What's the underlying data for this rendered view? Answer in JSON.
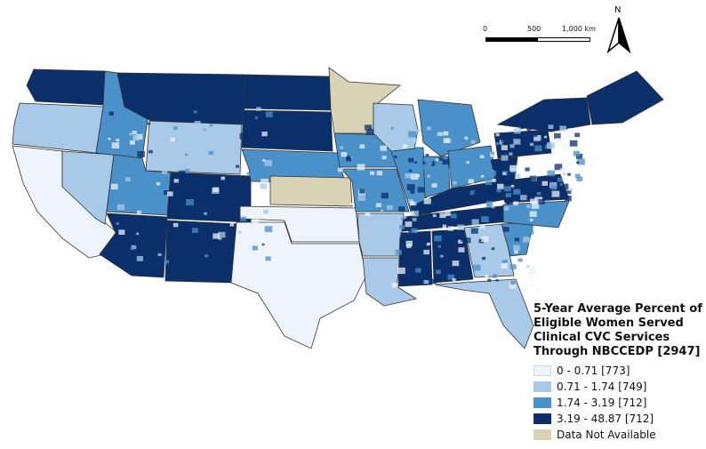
{
  "map": {
    "title": "5-Year Average Percent of Eligible Women Served Clinical CVC Services Through NBCCEDP [2947]",
    "scale_bar": {
      "labels": [
        "0",
        "500",
        "1,000 km"
      ]
    },
    "north_arrow_label": "N",
    "colors": {
      "class_1": "#eef4fb",
      "class_2": "#a9c9e8",
      "class_3": "#4a90c9",
      "class_4": "#0a2f6b",
      "no_data": "#d8d3b4",
      "boundary": "#333333"
    },
    "legend": {
      "title_lines": [
        "5-Year Average Percent of",
        "Eligible Women Served",
        "Clinical CVC Services",
        "Through NBCCEDP [2947]"
      ],
      "items": [
        {
          "label": "0 - 0.71 [773]",
          "color_key": "class_1"
        },
        {
          "label": "0.71 - 1.74 [749]",
          "color_key": "class_2"
        },
        {
          "label": "1.74 - 3.19 [712]",
          "color_key": "class_3"
        },
        {
          "label": "3.19 - 48.87 [712]",
          "color_key": "class_4"
        },
        {
          "label": "Data Not Available",
          "color_key": "no_data"
        }
      ]
    },
    "regions": [
      {
        "name": "Washington",
        "class": 4
      },
      {
        "name": "Oregon",
        "class": 2
      },
      {
        "name": "California",
        "class": 1
      },
      {
        "name": "Nevada",
        "class": 2
      },
      {
        "name": "Idaho",
        "class": 3
      },
      {
        "name": "Montana",
        "class": 4
      },
      {
        "name": "Wyoming",
        "class": 2
      },
      {
        "name": "Utah",
        "class": 3
      },
      {
        "name": "Arizona",
        "class": 4
      },
      {
        "name": "Colorado",
        "class": 4
      },
      {
        "name": "New Mexico",
        "class": 4
      },
      {
        "name": "North Dakota",
        "class": 4
      },
      {
        "name": "South Dakota",
        "class": 4
      },
      {
        "name": "Nebraska",
        "class": 3
      },
      {
        "name": "Kansas",
        "class": 0
      },
      {
        "name": "Oklahoma",
        "class": 1
      },
      {
        "name": "Texas",
        "class": 1
      },
      {
        "name": "Minnesota",
        "class": 0
      },
      {
        "name": "Iowa",
        "class": 3
      },
      {
        "name": "Missouri",
        "class": 3
      },
      {
        "name": "Arkansas",
        "class": 2
      },
      {
        "name": "Louisiana",
        "class": 2
      },
      {
        "name": "Wisconsin",
        "class": 2
      },
      {
        "name": "Illinois",
        "class": 3
      },
      {
        "name": "Michigan",
        "class": 3
      },
      {
        "name": "Indiana",
        "class": 3
      },
      {
        "name": "Ohio",
        "class": 3
      },
      {
        "name": "Kentucky",
        "class": 4
      },
      {
        "name": "Tennessee",
        "class": 4
      },
      {
        "name": "Mississippi",
        "class": 4
      },
      {
        "name": "Alabama",
        "class": 4
      },
      {
        "name": "Georgia",
        "class": 2
      },
      {
        "name": "Florida",
        "class": 2
      },
      {
        "name": "South Carolina",
        "class": 3
      },
      {
        "name": "North Carolina",
        "class": 3
      },
      {
        "name": "Virginia",
        "class": 4
      },
      {
        "name": "West Virginia",
        "class": 4
      },
      {
        "name": "Pennsylvania",
        "class": 4
      },
      {
        "name": "New York",
        "class": 4
      },
      {
        "name": "New England",
        "class": 4
      }
    ]
  }
}
